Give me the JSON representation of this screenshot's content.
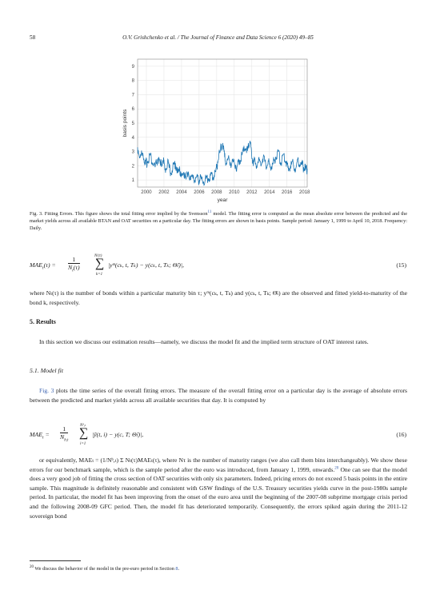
{
  "header": {
    "page_number": "58",
    "running_title": "O.V. Grishchenko et al. / The Journal of Finance and Data Science 6 (2020) 49–85"
  },
  "chart_data": {
    "type": "line",
    "ylabel": "basis points",
    "xlabel": "year",
    "xlim": [
      1999.0,
      2018.3
    ],
    "ylim": [
      0.5,
      9.5
    ],
    "x_ticks": [
      "2000",
      "2002",
      "2004",
      "2006",
      "2008",
      "2010",
      "2012",
      "2014",
      "2016",
      "2018"
    ],
    "y_ticks": [
      "1",
      "2",
      "3",
      "4",
      "5",
      "6",
      "7",
      "8",
      "9"
    ],
    "grid": true,
    "color": "#1f77b4",
    "series": [
      {
        "x": [
          1999.0,
          1999.3,
          1999.6,
          1999.9,
          2000.1,
          2000.4,
          2000.7,
          2001.0,
          2001.3,
          2001.6,
          2001.9,
          2002.1,
          2002.4,
          2002.7,
          2003.0,
          2003.3,
          2003.6,
          2003.9,
          2004.1,
          2004.4,
          2004.7,
          2005.0,
          2005.3,
          2005.6,
          2005.9,
          2006.1,
          2006.4,
          2006.7,
          2007.0,
          2007.3,
          2007.6,
          2007.9,
          2008.1,
          2008.4,
          2008.7,
          2008.9,
          2009.1,
          2009.4,
          2009.7,
          2010.0,
          2010.3,
          2010.6,
          2010.9,
          2011.1,
          2011.4,
          2011.6,
          2011.9,
          2012.1,
          2012.4,
          2012.7,
          2013.0,
          2013.3,
          2013.6,
          2013.9,
          2014.1,
          2014.4,
          2014.7,
          2015.0,
          2015.3,
          2015.6,
          2015.9,
          2016.1,
          2016.4,
          2016.7,
          2017.0,
          2017.3,
          2017.6,
          2017.9,
          2018.1,
          2018.3
        ],
        "values": [
          3.3,
          2.6,
          2.9,
          2.1,
          2.3,
          2.8,
          2.2,
          1.9,
          2.5,
          2.0,
          2.4,
          1.7,
          2.2,
          1.6,
          1.8,
          2.2,
          1.5,
          1.6,
          1.3,
          1.5,
          1.2,
          1.3,
          1.1,
          1.2,
          1.0,
          1.1,
          0.9,
          1.0,
          1.1,
          1.3,
          1.2,
          1.6,
          2.3,
          3.0,
          3.6,
          2.6,
          2.2,
          2.5,
          2.1,
          2.3,
          1.9,
          2.4,
          2.8,
          3.4,
          2.9,
          3.6,
          3.3,
          2.4,
          2.1,
          2.3,
          2.2,
          2.6,
          2.0,
          2.3,
          1.9,
          2.1,
          2.6,
          3.0,
          2.2,
          2.8,
          2.3,
          1.9,
          2.0,
          2.2,
          1.8,
          2.3,
          2.1,
          1.9,
          1.7,
          1.8
        ]
      }
    ]
  },
  "figure_caption": "Fig. 3.  Fitting Errors. This figure shows the total fitting error implied by the Svensson",
  "figure_caption_ref": "11",
  "figure_caption_rest": " model. The fitting error is computed as the mean absolute error between the predicted and the market yields across all available BTAN and OAT securities on a particular day. The fitting errors are shown in basis points. Sample period: January 1, 1999 to April 10, 2018. Frequency: Daily.",
  "eq15": {
    "lhs": "MAE",
    "sum_top": "Nⁱ(τ)",
    "sum_bottom": "k=1",
    "body": "|yᵐ(cₖ, t, Tₖ) − y(cₖ, t, Tₖ; Θ̂ₜ)|,",
    "number": "(15)"
  },
  "para_after15": "where Nₜ(τ) is the number of bonds within a particular maturity bin τ; yᵐ(cₖ, t, Tₖ) and y(cₖ, t, Tₖ; Θ̂ₜ) are the observed and fitted yield-to-maturity of the bond k, respectively.",
  "section5": "5.  Results",
  "section5_text": "In this section we discuss our estimation results—namely, we discuss the model fit and the implied term structure of OAT interest rates.",
  "subsection51": "5.1.  Model fit",
  "sub51_link": "Fig. 3",
  "sub51_text": " plots the time series of the overall fitting errors. The measure of the overall fitting error on a particular day is the average of absolute errors between the predicted and market yields across all available securities that day. It is computed by",
  "eq16": {
    "lhs": "MAE",
    "sum_top": "Nᵇ,ₜ",
    "sum_bottom": "i=1",
    "body": "|ȳ(t, i) − y(c, T; Θ̂ₜ)|,",
    "number": "(16)"
  },
  "para_after16_a": "or equivalently, MAEₜ = (1/Nᵇ,ₜ) Σ Nₜ(τ)MAEₜ(τ), where Nτ is the number of maturity ranges (we also call them bins interchangeably). We show these errors for our benchmark sample, which is the sample period after the euro was introduced, from January 1, 1999, onwards.",
  "para_after16_ref": "20",
  "para_after16_b": " One can see that the model does a very good job of fitting the cross section of OAT securities with only six parameters. Indeed, pricing errors do not exceed 5 basis points in the entire sample. This magnitude is definitely reasonable and consistent with GSW findings of the U.S. Treasury securities yields curve in the post-1980s sample period. In particular, the model fit has been improving from the onset of the euro area until the beginning of the 2007-08 subprime mortgage crisis period and the following 2008-09 GFC period. Then, the model fit has deteriorated temporarily. Consequently, the errors spiked again during the 2011-12 sovereign bond",
  "footnote_num": "20",
  "footnote_text": " We discuss the behavior of the model in the pre-euro period in Section ",
  "footnote_link": "8",
  "footnote_end": "."
}
